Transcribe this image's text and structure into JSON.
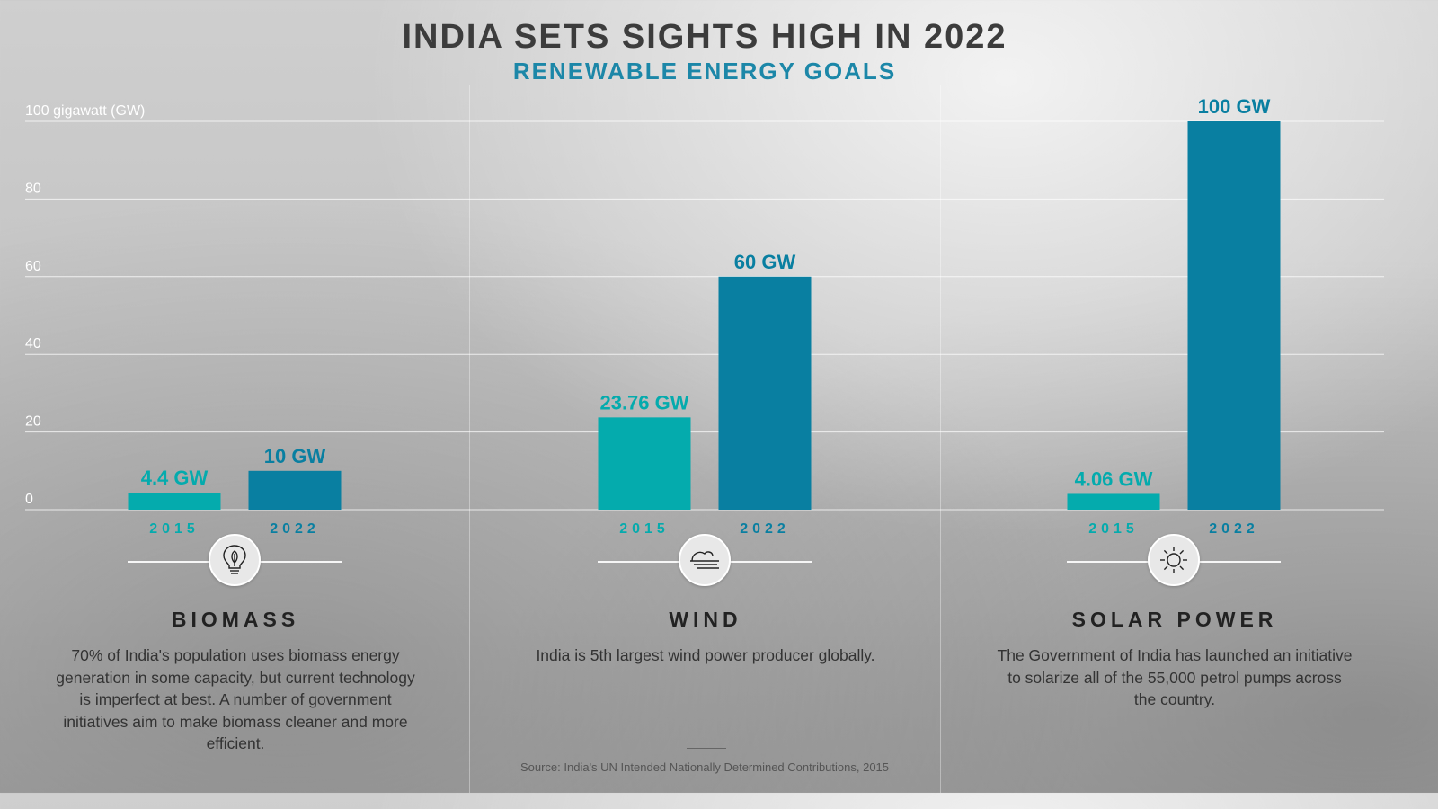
{
  "title": "INDIA SETS SIGHTS HIGH IN 2022",
  "subtitle": "RENEWABLE ENERGY GOALS",
  "source": "Source: India's UN Intended Nationally Determined Contributions, 2015",
  "colors": {
    "bar_2015": "#04abad",
    "bar_2022": "#097fa1",
    "title": "#3c3c3c",
    "subtitle": "#1c87a8"
  },
  "chart_data": {
    "type": "bar",
    "title": "INDIA SETS SIGHTS HIGH IN 2022",
    "subtitle": "RENEWABLE ENERGY GOALS",
    "ylabel": "100 gigawatt (GW)",
    "ylim": [
      0,
      100
    ],
    "yticks": [
      {
        "value": 0,
        "label": "0"
      },
      {
        "value": 20,
        "label": "20"
      },
      {
        "value": 40,
        "label": "40"
      },
      {
        "value": 60,
        "label": "60"
      },
      {
        "value": 80,
        "label": "80"
      },
      {
        "value": 100,
        "label": "100 gigawatt (GW)"
      }
    ],
    "categories": [
      "BIOMASS",
      "WIND",
      "SOLAR POWER"
    ],
    "series": [
      {
        "name": "2015",
        "values": [
          4.4,
          23.76,
          4.06
        ],
        "labels": [
          "4.4 GW",
          "23.76 GW",
          "4.06 GW"
        ]
      },
      {
        "name": "2022",
        "values": [
          10,
          60,
          100
        ],
        "labels": [
          "10 GW",
          "60 GW",
          "100 GW"
        ]
      }
    ]
  },
  "panels": [
    {
      "name": "BIOMASS",
      "icon": "lightbulb-leaf-icon",
      "description": "70% of India's population uses biomass energy generation in some capacity, but current technology is imperfect at best. A number of government initiatives aim to make biomass cleaner and more efficient."
    },
    {
      "name": "WIND",
      "icon": "wind-icon",
      "description": "India is 5th largest wind power producer globally."
    },
    {
      "name": "SOLAR POWER",
      "icon": "sun-icon",
      "description": "The Government of India has launched an initiative to solarize all of the 55,000 petrol pumps across the country."
    }
  ]
}
